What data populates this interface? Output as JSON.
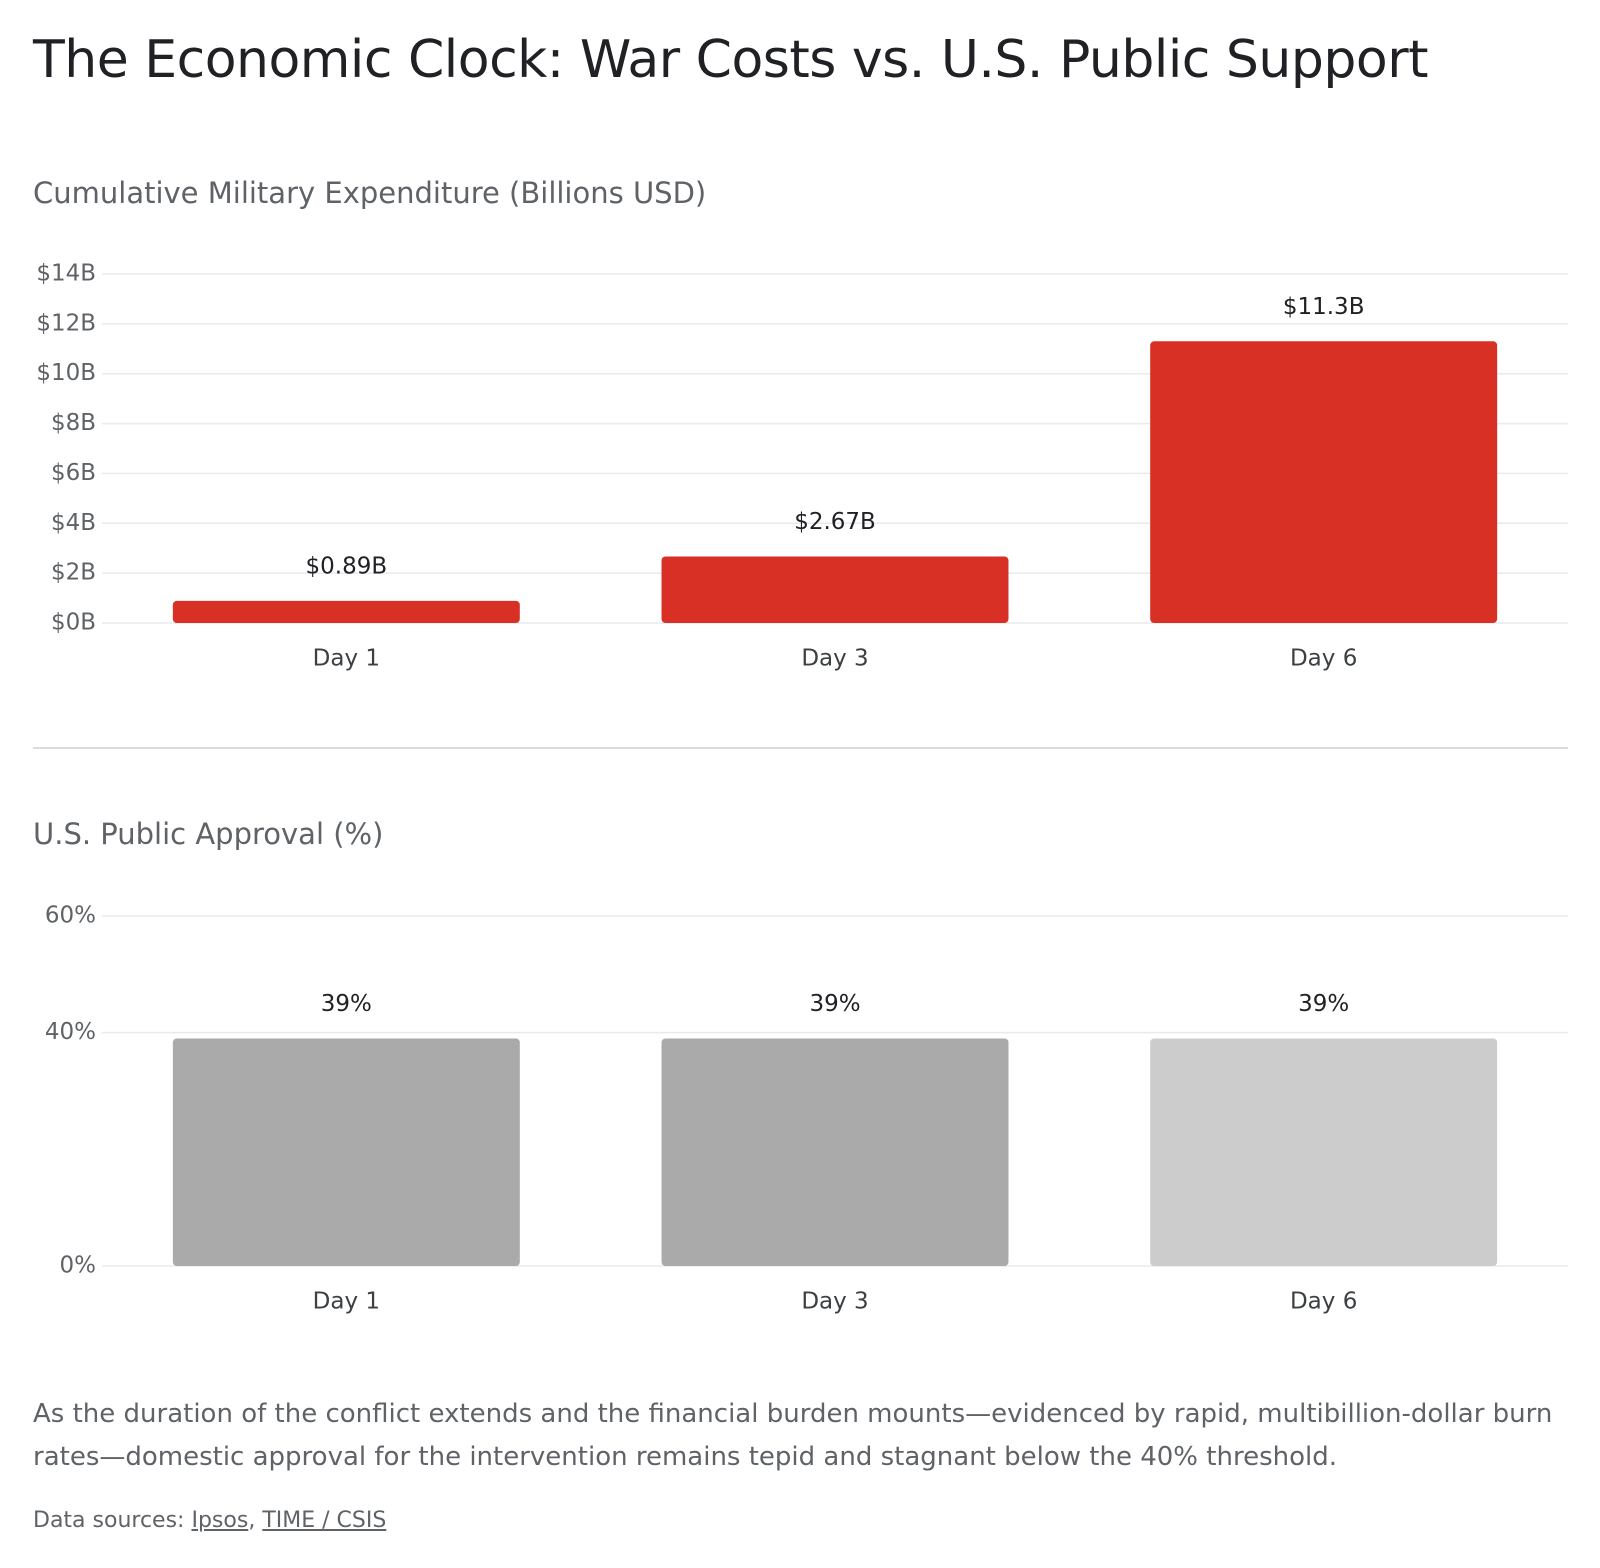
{
  "title": "The Economic Clock: War Costs vs. U.S. Public Support",
  "chart_data": [
    {
      "type": "bar",
      "title": "Cumulative Military Expenditure (Billions USD)",
      "categories": [
        "Day 1",
        "Day 3",
        "Day 6"
      ],
      "values": [
        0.89,
        2.67,
        11.3
      ],
      "value_labels": [
        "$0.89B",
        "$2.67B",
        "$11.3B"
      ],
      "colors": [
        "#d93025",
        "#d93025",
        "#d93025"
      ],
      "ylim": [
        0,
        14
      ],
      "yticks": [
        {
          "value": 0,
          "label": "$0B"
        },
        {
          "value": 2,
          "label": "$2B"
        },
        {
          "value": 4,
          "label": "$4B"
        },
        {
          "value": 6,
          "label": "$6B"
        },
        {
          "value": 8,
          "label": "$8B"
        },
        {
          "value": 10,
          "label": "$10B"
        },
        {
          "value": 12,
          "label": "$12B"
        },
        {
          "value": 14,
          "label": "$14B"
        }
      ],
      "grid": true
    },
    {
      "type": "bar",
      "title": "U.S. Public Approval (%)",
      "categories": [
        "Day 1",
        "Day 3",
        "Day 6"
      ],
      "values": [
        39,
        39,
        39
      ],
      "value_labels": [
        "39%",
        "39%",
        "39%"
      ],
      "colors": [
        "#aaaaaa",
        "#aaaaaa",
        "#cccccc"
      ],
      "ylim": [
        0,
        60
      ],
      "yticks": [
        {
          "value": 0,
          "label": "0%"
        },
        {
          "value": 40,
          "label": "40%"
        },
        {
          "value": 60,
          "label": "60%"
        }
      ],
      "grid": true
    }
  ],
  "description": "As the duration of the conflict extends and the financial burden mounts—evidenced by rapid, multibillion-dollar burn rates—domestic approval for the intervention remains tepid and stagnant below the 40% threshold.",
  "sources": {
    "label": "Data sources:",
    "links": [
      "Ipsos",
      "TIME / CSIS"
    ],
    "separator": ","
  }
}
